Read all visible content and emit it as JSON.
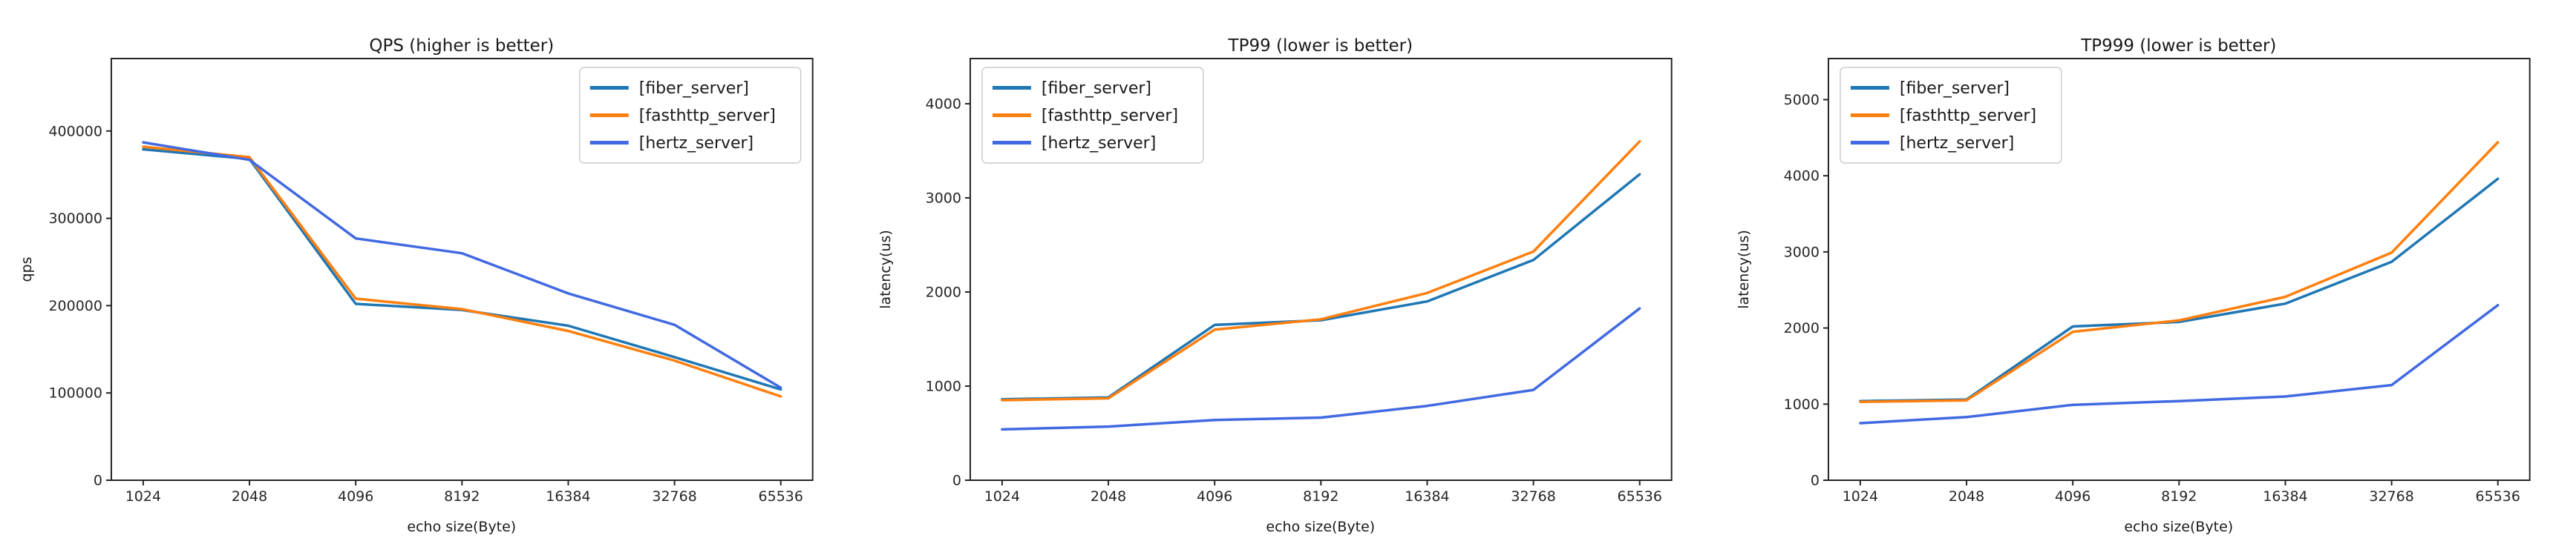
{
  "figure": {
    "background_color": "#ffffff",
    "axis_color": "#262626",
    "text_color": "#1a1a1a",
    "legend_border_color": "#cccccc"
  },
  "chart_data": [
    {
      "type": "line",
      "title": "QPS (higher is better)",
      "xlabel": "echo size(Byte)",
      "ylabel": "qps",
      "categories": [
        "1024",
        "2048",
        "4096",
        "8192",
        "16384",
        "32768",
        "65536"
      ],
      "yticks": [
        0,
        100000,
        200000,
        300000,
        400000
      ],
      "ylim": [
        0,
        483000
      ],
      "grid": false,
      "legend_position": "upper-right",
      "series": [
        {
          "name": "[fiber_server]",
          "color": "#1f77b4",
          "values": [
            379000,
            368000,
            202000,
            195000,
            177000,
            141000,
            104000
          ]
        },
        {
          "name": "[fasthttp_server]",
          "color": "#ff7f0e",
          "values": [
            382000,
            370000,
            208000,
            196000,
            171000,
            137000,
            96000
          ]
        },
        {
          "name": "[hertz_server]",
          "color": "#4169e1",
          "values": [
            387000,
            367000,
            277000,
            260000,
            214000,
            178000,
            106000
          ]
        }
      ]
    },
    {
      "type": "line",
      "title": "TP99 (lower is better)",
      "xlabel": "echo size(Byte)",
      "ylabel": "latency(us)",
      "categories": [
        "1024",
        "2048",
        "4096",
        "8192",
        "16384",
        "32768",
        "65536"
      ],
      "yticks": [
        0,
        1000,
        2000,
        3000,
        4000
      ],
      "ylim": [
        0,
        4480
      ],
      "grid": false,
      "legend_position": "upper-left",
      "series": [
        {
          "name": "[fiber_server]",
          "color": "#1f77b4",
          "values": [
            860,
            880,
            1650,
            1700,
            1900,
            2340,
            3250
          ]
        },
        {
          "name": "[fasthttp_server]",
          "color": "#ff7f0e",
          "values": [
            850,
            870,
            1600,
            1710,
            1990,
            2430,
            3600
          ]
        },
        {
          "name": "[hertz_server]",
          "color": "#4169e1",
          "values": [
            540,
            570,
            640,
            665,
            790,
            960,
            1825
          ]
        }
      ]
    },
    {
      "type": "line",
      "title": "TP999 (lower is better)",
      "xlabel": "echo size(Byte)",
      "ylabel": "latency(us)",
      "categories": [
        "1024",
        "2048",
        "4096",
        "8192",
        "16384",
        "32768",
        "65536"
      ],
      "yticks": [
        0,
        1000,
        2000,
        3000,
        4000,
        5000
      ],
      "ylim": [
        0,
        5540
      ],
      "grid": false,
      "legend_position": "upper-left",
      "series": [
        {
          "name": "[fiber_server]",
          "color": "#1f77b4",
          "values": [
            1040,
            1060,
            2020,
            2080,
            2320,
            2870,
            3960
          ]
        },
        {
          "name": "[fasthttp_server]",
          "color": "#ff7f0e",
          "values": [
            1030,
            1050,
            1950,
            2100,
            2410,
            2990,
            4440
          ]
        },
        {
          "name": "[hertz_server]",
          "color": "#4169e1",
          "values": [
            750,
            830,
            990,
            1040,
            1100,
            1250,
            2300
          ]
        }
      ]
    }
  ]
}
